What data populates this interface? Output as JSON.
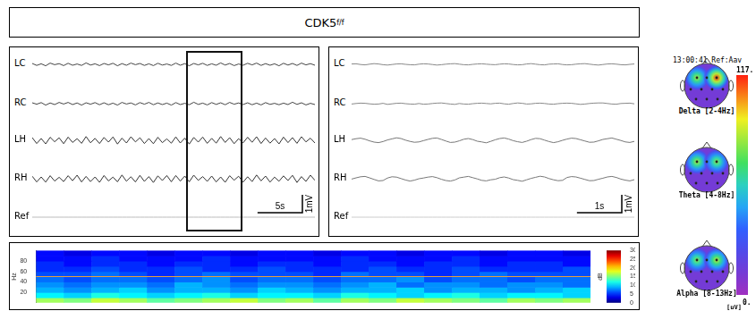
{
  "title": {
    "text": "CDK5",
    "superscript": "f/f"
  },
  "chart_data": [
    {
      "type": "line",
      "tick_labels": false,
      "xlim": [
        0,
        31.5
      ],
      "ylim": [
        -1.1,
        1.1
      ],
      "x": [
        0,
        0.5,
        1,
        1.5,
        2,
        2.5,
        3,
        3.5,
        4,
        4.5,
        5,
        5.5,
        6,
        6.5,
        7,
        7.5,
        8,
        8.5,
        9,
        9.5,
        10,
        10.5,
        11,
        11.5,
        12,
        12.5,
        13,
        13.5,
        14,
        14.5,
        15,
        15.5,
        16,
        16.5,
        17,
        17.5,
        18,
        18.5,
        19,
        19.5,
        20,
        20.5,
        21,
        21.5,
        22,
        22.5,
        23,
        23.5,
        24,
        24.5,
        25,
        25.5,
        26,
        26.5,
        27,
        27.5,
        28,
        28.5,
        29,
        29.5,
        30,
        30.5,
        31,
        31.5
      ],
      "series": [
        {
          "name": "LC",
          "color": "#444444",
          "values": [
            0.05,
            -0.06,
            0.03,
            -0.08,
            0.07,
            -0.02,
            0.04,
            -0.07,
            0.06,
            -0.05,
            0.02,
            -0.06,
            0.08,
            -0.04,
            0.03,
            -0.07,
            0.05,
            -0.03,
            0.06,
            -0.08,
            0.04,
            -0.05,
            0.07,
            -0.02,
            0.05,
            -0.06,
            0.03,
            -0.07,
            0.06,
            -0.04,
            0.02,
            -0.06,
            0.07,
            -0.05,
            0.04,
            -0.08,
            0.05,
            -0.03,
            0.06,
            -0.06,
            0.03,
            -0.05,
            0.08,
            -0.04,
            0.05,
            -0.07,
            0.02,
            -0.05,
            0.06,
            -0.03,
            0.07,
            -0.06,
            0.04,
            -0.05,
            0.03,
            -0.08,
            0.06,
            -0.04,
            0.05,
            -0.06,
            0.07,
            -0.03,
            0.04,
            -0.05
          ]
        },
        {
          "name": "RC",
          "color": "#444444",
          "values": [
            0.05,
            -0.03,
            0.06,
            -0.08,
            0.04,
            -0.05,
            0.07,
            -0.02,
            0.07,
            -0.05,
            0.04,
            -0.08,
            0.05,
            -0.03,
            0.06,
            -0.06,
            0.05,
            -0.06,
            0.03,
            -0.08,
            0.07,
            -0.02,
            0.04,
            -0.07,
            0.06,
            -0.03,
            0.07,
            -0.06,
            0.04,
            -0.05,
            0.03,
            -0.08,
            0.06,
            -0.05,
            0.02,
            -0.06,
            0.08,
            -0.04,
            0.03,
            -0.07,
            0.06,
            -0.04,
            0.05,
            -0.06,
            0.07,
            -0.03,
            0.04,
            -0.05,
            0.05,
            -0.06,
            0.03,
            -0.07,
            0.06,
            -0.04,
            0.02,
            -0.06,
            0.03,
            -0.05,
            0.08,
            -0.04,
            0.05,
            -0.07,
            0.02,
            -0.05
          ]
        },
        {
          "name": "LH",
          "color": "#333333",
          "values": [
            0.15,
            -0.18,
            0.1,
            -0.2,
            0.17,
            -0.08,
            0.14,
            -0.19,
            0.18,
            -0.12,
            0.09,
            -0.17,
            0.21,
            -0.14,
            0.11,
            -0.18,
            0.16,
            -0.1,
            0.19,
            -0.21,
            0.12,
            -0.15,
            0.2,
            -0.09,
            0.14,
            -0.18,
            0.1,
            -0.19,
            0.17,
            -0.13,
            0.08,
            -0.16,
            0.19,
            -0.15,
            0.12,
            -0.21,
            0.16,
            -0.1,
            0.18,
            -0.17,
            0.11,
            -0.16,
            0.21,
            -0.12,
            0.15,
            -0.19,
            0.09,
            -0.14,
            0.17,
            -0.11,
            0.2,
            -0.18,
            0.13,
            -0.16,
            0.1,
            -0.2,
            0.18,
            -0.13,
            0.15,
            -0.17,
            0.2,
            -0.09,
            0.12,
            -0.15
          ]
        },
        {
          "name": "RH",
          "color": "#333333",
          "values": [
            0.14,
            -0.18,
            0.1,
            -0.19,
            0.17,
            -0.13,
            0.08,
            -0.16,
            0.17,
            -0.11,
            0.2,
            -0.18,
            0.13,
            -0.16,
            0.1,
            -0.2,
            0.18,
            -0.12,
            0.09,
            -0.17,
            0.21,
            -0.14,
            0.11,
            -0.18,
            0.19,
            -0.15,
            0.12,
            -0.21,
            0.16,
            -0.1,
            0.18,
            -0.17,
            0.18,
            -0.13,
            0.15,
            -0.17,
            0.2,
            -0.09,
            0.12,
            -0.15,
            0.15,
            -0.18,
            0.1,
            -0.2,
            0.17,
            -0.08,
            0.14,
            -0.19,
            0.11,
            -0.16,
            0.21,
            -0.12,
            0.15,
            -0.19,
            0.09,
            -0.14,
            0.16,
            -0.1,
            0.19,
            -0.21,
            0.12,
            -0.15,
            0.2,
            -0.09
          ]
        },
        {
          "name": "Ref",
          "color": "#bbbbbb",
          "values": [
            0,
            0,
            0,
            0,
            0,
            0,
            0,
            0,
            0,
            0,
            0,
            0,
            0,
            0,
            0,
            0,
            0,
            0,
            0,
            0,
            0,
            0,
            0,
            0,
            0,
            0,
            0,
            0,
            0,
            0,
            0,
            0,
            0,
            0,
            0,
            0,
            0,
            0,
            0,
            0,
            0,
            0,
            0,
            0,
            0,
            0,
            0,
            0,
            0,
            0,
            0,
            0,
            0,
            0,
            0,
            0,
            0,
            0,
            0,
            0,
            0,
            0,
            0,
            0
          ]
        }
      ],
      "highlight_x": [
        17.1,
        23.4
      ],
      "scale_bars": {
        "x": 5,
        "x_label": "5s",
        "y": 1,
        "y_label": "1mV"
      }
    },
    {
      "type": "line",
      "tick_labels": false,
      "xlim": [
        0,
        6.3
      ],
      "ylim": [
        -1.1,
        1.1
      ],
      "x": [
        0,
        0.1,
        0.2,
        0.3,
        0.4,
        0.5,
        0.6,
        0.7,
        0.8,
        0.9,
        1,
        1.1,
        1.2,
        1.3,
        1.4,
        1.5,
        1.6,
        1.7,
        1.8,
        1.9,
        2,
        2.1,
        2.2,
        2.3,
        2.4,
        2.5,
        2.6,
        2.7,
        2.8,
        2.9,
        3,
        3.1,
        3.2,
        3.3,
        3.4,
        3.5,
        3.6,
        3.7,
        3.8,
        3.9,
        4,
        4.1,
        4.2,
        4.3,
        4.4,
        4.5,
        4.6,
        4.7,
        4.8,
        4.9,
        5,
        5.1,
        5.2,
        5.3,
        5.4,
        5.5,
        5.6,
        5.7,
        5.8,
        5.9,
        6,
        6.1,
        6.2,
        6.3
      ],
      "series": [
        {
          "name": "LC",
          "color": "#888888",
          "values": [
            0.02,
            0.03,
            -0.01,
            -0.03,
            0.01,
            0.04,
            0.02,
            -0.02,
            -0.04,
            -0.01,
            0.02,
            0.03,
            0.0,
            -0.02,
            -0.03,
            0.01,
            0.03,
            0.02,
            -0.01,
            -0.04,
            -0.02,
            0.01,
            0.03,
            0.04,
            0.01,
            -0.02,
            -0.03,
            0.0,
            0.02,
            0.03,
            0.01,
            -0.01,
            -0.02,
            0.01,
            0.03,
            0.02,
            -0.01,
            -0.03,
            -0.02,
            0.02,
            0.04,
            0.01,
            -0.02,
            -0.03,
            0.01,
            0.02,
            0.03,
            -0.01,
            -0.03,
            -0.02,
            0.01,
            0.03,
            0.04,
            0.01,
            -0.02,
            -0.04,
            -0.01,
            0.02,
            0.03,
            0.01,
            -0.02,
            -0.03,
            0.0,
            0.02
          ]
        },
        {
          "name": "RC",
          "color": "#888888",
          "values": [
            -0.02,
            0.01,
            0.03,
            0.02,
            -0.01,
            -0.03,
            -0.02,
            0.02,
            -0.04,
            -0.01,
            0.02,
            0.03,
            0.0,
            -0.02,
            -0.03,
            0.01,
            -0.03,
            -0.02,
            0.01,
            0.03,
            0.04,
            0.01,
            -0.02,
            -0.04,
            0.01,
            -0.02,
            -0.03,
            0.0,
            0.02,
            0.03,
            0.01,
            -0.01,
            0.02,
            0.03,
            -0.01,
            -0.03,
            0.01,
            0.04,
            0.02,
            -0.02,
            -0.01,
            0.02,
            0.03,
            0.01,
            -0.02,
            -0.03,
            0.0,
            0.02,
            0.03,
            0.02,
            -0.01,
            -0.04,
            -0.02,
            0.01,
            0.03,
            0.04,
            0.04,
            0.01,
            -0.02,
            -0.03,
            0.01,
            0.02,
            0.03,
            -0.01
          ]
        },
        {
          "name": "LH",
          "color": "#777777",
          "values": [
            0.04,
            0.09,
            0.12,
            0.06,
            -0.03,
            -0.1,
            -0.13,
            -0.07,
            0.02,
            0.08,
            0.14,
            0.1,
            0.01,
            -0.06,
            -0.11,
            -0.09,
            -0.02,
            0.05,
            0.11,
            0.13,
            0.05,
            -0.04,
            -0.12,
            -0.1,
            -0.03,
            0.06,
            0.1,
            0.04,
            -0.05,
            -0.09,
            -0.14,
            -0.06,
            0.03,
            0.1,
            0.13,
            0.07,
            -0.02,
            -0.08,
            -0.12,
            -0.05,
            0.04,
            0.11,
            0.09,
            0.01,
            -0.07,
            -0.13,
            -0.08,
            0.0,
            0.07,
            0.12,
            0.1,
            0.03,
            -0.04,
            -0.11,
            -0.1,
            -0.03,
            0.05,
            0.09,
            0.13,
            0.06,
            -0.01,
            -0.09,
            -0.12,
            -0.06
          ]
        },
        {
          "name": "RH",
          "color": "#777777",
          "values": [
            -0.02,
            0.05,
            0.11,
            0.13,
            0.05,
            -0.04,
            -0.12,
            -0.1,
            0.04,
            0.11,
            0.09,
            0.01,
            -0.07,
            -0.13,
            -0.08,
            0.0,
            0.04,
            0.09,
            0.12,
            0.06,
            -0.03,
            -0.1,
            -0.13,
            -0.07,
            0.05,
            0.09,
            0.13,
            0.06,
            -0.01,
            -0.09,
            -0.12,
            -0.06,
            -0.03,
            0.06,
            0.1,
            0.04,
            -0.05,
            -0.09,
            -0.14,
            -0.06,
            0.02,
            0.08,
            0.14,
            0.1,
            0.01,
            -0.06,
            -0.11,
            -0.09,
            0.07,
            0.12,
            0.1,
            0.03,
            -0.04,
            -0.11,
            -0.1,
            -0.03,
            0.03,
            0.1,
            0.13,
            0.07,
            -0.02,
            -0.08,
            -0.12,
            -0.05
          ]
        },
        {
          "name": "Ref",
          "color": "#cccccc",
          "values": [
            0,
            0,
            0,
            0,
            0,
            0,
            0,
            0,
            0,
            0,
            0,
            0,
            0,
            0,
            0,
            0,
            0,
            0,
            0,
            0,
            0,
            0,
            0,
            0,
            0,
            0,
            0,
            0,
            0,
            0,
            0,
            0,
            0,
            0,
            0,
            0,
            0,
            0,
            0,
            0,
            0,
            0,
            0,
            0,
            0,
            0,
            0,
            0,
            0,
            0,
            0,
            0,
            0,
            0,
            0,
            0,
            0,
            0,
            0,
            0,
            0,
            0,
            0,
            0
          ]
        }
      ],
      "scale_bars": {
        "x": 1,
        "x_label": "1s",
        "y": 1,
        "y_label": "1mV"
      }
    },
    {
      "type": "heatmap",
      "tick_labels": "y",
      "y_label": "Hz",
      "xlim": [
        0,
        20
      ],
      "ylim": [
        0,
        100
      ],
      "yticks": [
        20,
        40,
        60,
        80
      ],
      "time_bins": [
        0,
        1,
        2,
        3,
        4,
        5,
        6,
        7,
        8,
        9,
        10,
        11,
        12,
        13,
        14,
        15,
        16,
        17,
        18,
        19,
        20
      ],
      "freq_bins": [
        0,
        10,
        20,
        30,
        40,
        50,
        60,
        70,
        80,
        90,
        100
      ],
      "cells": [
        [
          16,
          15,
          17,
          16,
          14,
          15,
          16,
          17,
          15,
          16,
          14,
          16,
          15,
          17,
          16,
          15,
          14,
          16,
          15,
          16
        ],
        [
          11,
          10,
          12,
          11,
          10,
          11,
          12,
          10,
          11,
          11,
          10,
          12,
          11,
          10,
          11,
          12,
          10,
          11,
          11,
          10
        ],
        [
          9,
          8,
          9,
          10,
          8,
          9,
          9,
          8,
          10,
          9,
          8,
          9,
          9,
          10,
          8,
          9,
          9,
          8,
          9,
          10
        ],
        [
          8,
          7,
          8,
          8,
          7,
          9,
          8,
          7,
          8,
          8,
          7,
          8,
          9,
          7,
          8,
          8,
          7,
          8,
          8,
          7
        ],
        [
          7,
          6,
          7,
          7,
          6,
          7,
          8,
          6,
          7,
          7,
          6,
          7,
          7,
          8,
          6,
          7,
          7,
          6,
          7,
          7
        ],
        [
          6,
          6,
          7,
          6,
          5,
          6,
          7,
          6,
          6,
          6,
          5,
          7,
          6,
          6,
          5,
          6,
          7,
          6,
          6,
          6
        ],
        [
          5,
          5,
          6,
          5,
          5,
          6,
          5,
          5,
          6,
          5,
          5,
          5,
          6,
          5,
          5,
          6,
          5,
          5,
          5,
          6
        ],
        [
          5,
          4,
          5,
          5,
          4,
          5,
          5,
          4,
          5,
          5,
          4,
          5,
          5,
          4,
          5,
          5,
          4,
          5,
          5,
          4
        ],
        [
          4,
          4,
          5,
          4,
          4,
          4,
          5,
          4,
          4,
          4,
          4,
          5,
          4,
          4,
          4,
          5,
          4,
          4,
          4,
          4
        ],
        [
          4,
          3,
          4,
          4,
          3,
          4,
          4,
          3,
          4,
          4,
          3,
          4,
          4,
          3,
          4,
          4,
          3,
          4,
          4,
          3
        ]
      ],
      "hline": 50,
      "colorbar": {
        "lim": [
          0,
          30
        ],
        "ticks": [
          0,
          5,
          10,
          15,
          20,
          25,
          30
        ],
        "label": "dB"
      }
    }
  ],
  "topomap": {
    "header": "13:00:41 Ref:Aav",
    "colorbar": {
      "lim": [
        0,
        117
      ],
      "ticks": [
        {
          "value": 117,
          "label": "117."
        },
        {
          "value": 0,
          "label": "0."
        }
      ],
      "label": "[uV]"
    },
    "maps": [
      {
        "label": "Delta [2-4Hz]",
        "left": 85,
        "right": 117,
        "background": 12
      },
      {
        "label": "Theta [4-8Hz]",
        "left": 85,
        "right": 80,
        "background": 12
      },
      {
        "label": "Alpha [8-13Hz]",
        "left": 80,
        "right": 88,
        "background": 12
      }
    ]
  }
}
